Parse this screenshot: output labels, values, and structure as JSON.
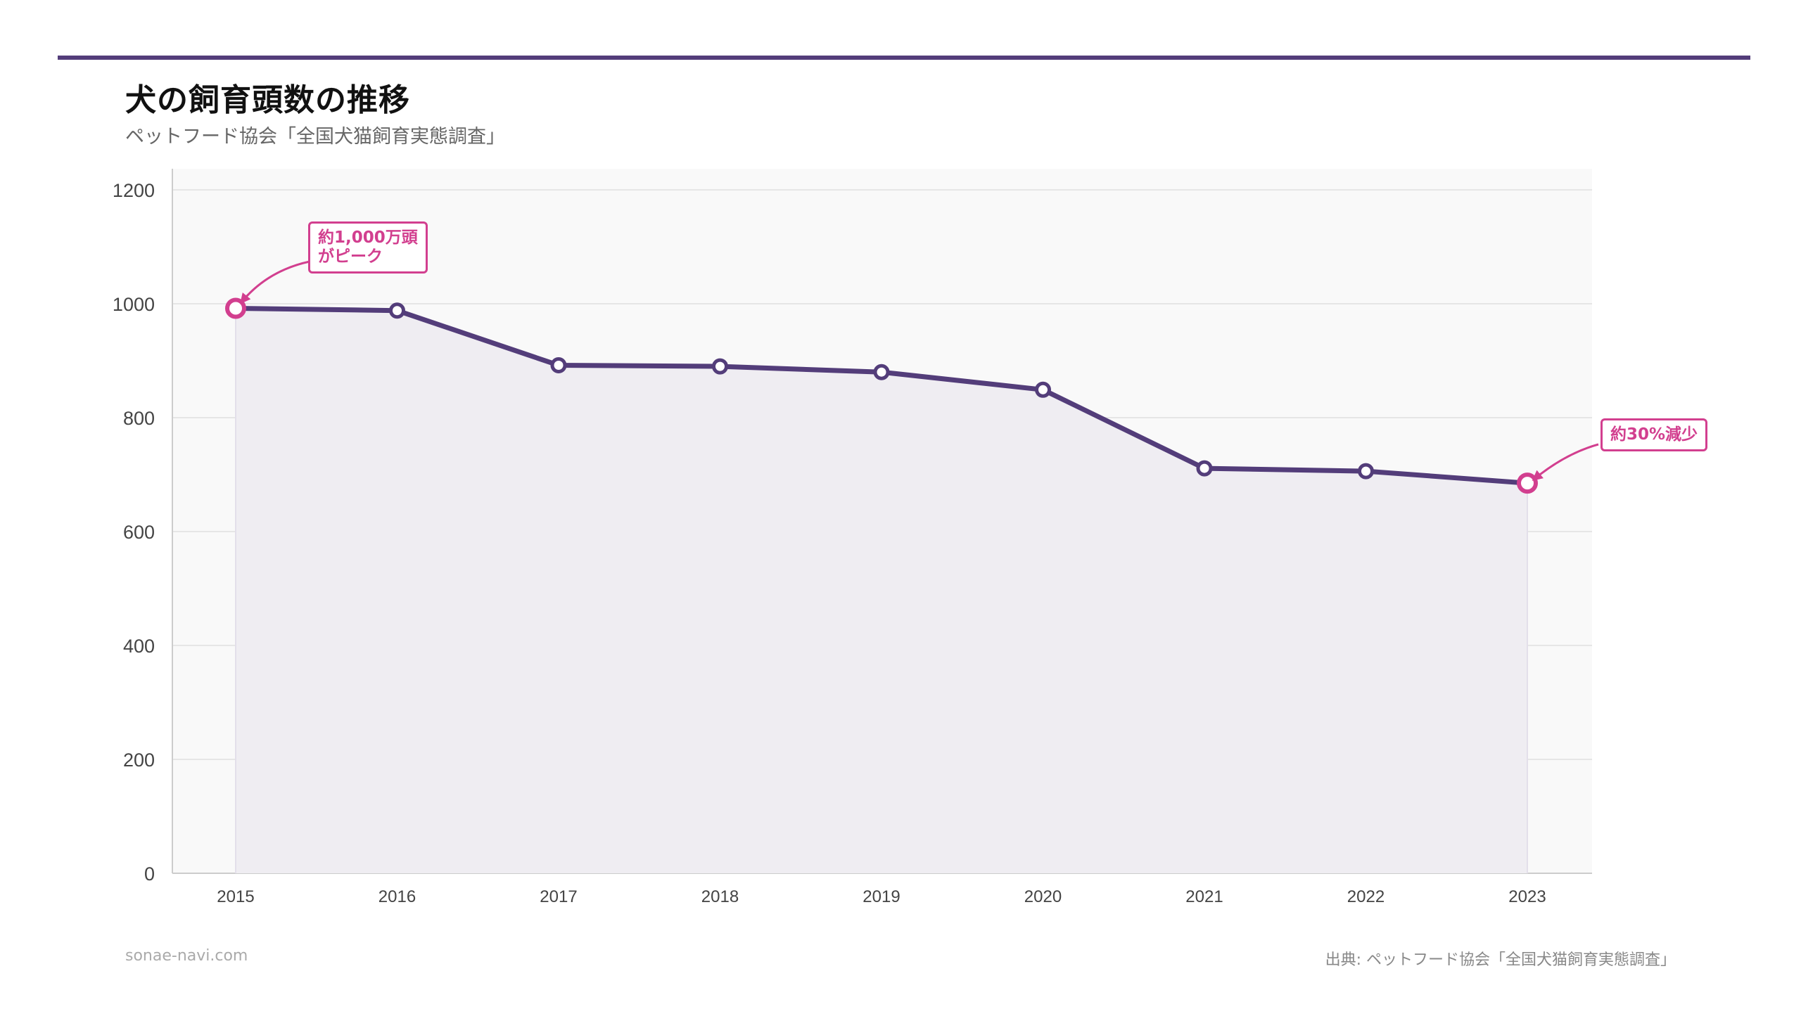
{
  "header": {
    "title": "犬の飼育頭数の推移",
    "subtitle": "ペットフード協会「全国犬猫飼育実態調査」"
  },
  "footer": {
    "site": "sonae-navi.com",
    "source": "出典: ペットフード協会「全国犬猫飼育実態調査」"
  },
  "annotations": {
    "peak": "約1,000万頭\nがピーク",
    "decline": "約30%減少"
  },
  "colors": {
    "line": "#533d7a",
    "highlight": "#d23f8f",
    "plot_bg": "#f9f9f9",
    "area": "#efedf2",
    "grid": "#e6e6e6"
  },
  "chart_data": {
    "type": "line",
    "title": "犬の飼育頭数の推移",
    "subtitle": "ペットフード協会「全国犬猫飼育実態調査」",
    "xlabel": "",
    "ylabel": "",
    "categories": [
      "2015",
      "2016",
      "2017",
      "2018",
      "2019",
      "2020",
      "2021",
      "2022",
      "2023"
    ],
    "series": [
      {
        "values": [
          992,
          988,
          892,
          890,
          880,
          849,
          711,
          706,
          685
        ]
      }
    ],
    "ylim": [
      0,
      1200
    ],
    "yticks": [
      0,
      200,
      400,
      600,
      800,
      1000,
      1200
    ],
    "grid": true,
    "area_fill": true,
    "highlighted_points": [
      "2015",
      "2023"
    ]
  }
}
